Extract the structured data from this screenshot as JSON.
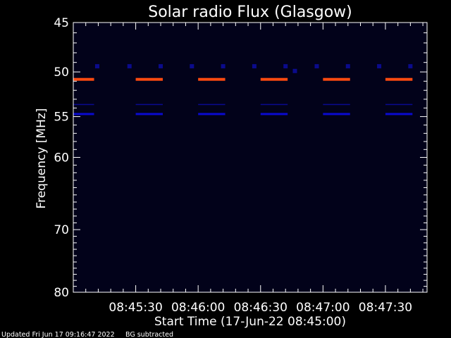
{
  "chart_data": {
    "type": "heatmap",
    "title": "Solar radio Flux (Glasgow)",
    "ylabel": "Frequency [MHz]",
    "xlabel": "Start Time (17-Jun-22 08:45:00)",
    "y_scale": "log",
    "ylim": [
      45,
      80
    ],
    "y_ticks": [
      45,
      50,
      55,
      60,
      70,
      80
    ],
    "y_tick_labels": [
      "45",
      "50",
      "55",
      "60",
      "70",
      "80"
    ],
    "xlim": [
      0,
      170
    ],
    "x_ticks": [
      30,
      60,
      90,
      120,
      150
    ],
    "x_tick_labels": [
      "08:45:30",
      "08:46:00",
      "08:46:30",
      "08:47:00",
      "08:47:30"
    ],
    "x_minor_step": 6,
    "colors": {
      "background": "#000000",
      "plot_background": "#02021a",
      "axis": "#ffffff",
      "strong_band": "#ff4a10",
      "mid_band": "#0a0ad0",
      "weak_band": "#0a0a90",
      "marker": "#0b0b8c"
    },
    "bands": [
      {
        "frequency": 50.8,
        "intensity": "strong",
        "segments": [
          [
            0,
            10
          ],
          [
            30,
            43
          ],
          [
            60,
            73
          ],
          [
            90,
            103
          ],
          [
            120,
            133
          ],
          [
            150,
            163
          ]
        ]
      },
      {
        "frequency": 54.7,
        "intensity": "mid",
        "segments": [
          [
            0,
            10
          ],
          [
            30,
            43
          ],
          [
            60,
            73
          ],
          [
            90,
            103
          ],
          [
            120,
            133
          ],
          [
            150,
            163
          ]
        ]
      },
      {
        "frequency": 53.6,
        "intensity": "weak",
        "segments": [
          [
            0,
            10
          ],
          [
            30,
            43
          ],
          [
            60,
            73
          ],
          [
            90,
            103
          ],
          [
            120,
            133
          ],
          [
            150,
            163
          ]
        ]
      }
    ],
    "markers": [
      {
        "x": 11.5,
        "frequency": 49.4
      },
      {
        "x": 27,
        "frequency": 49.4
      },
      {
        "x": 42,
        "frequency": 49.4
      },
      {
        "x": 57,
        "frequency": 49.4
      },
      {
        "x": 72,
        "frequency": 49.4
      },
      {
        "x": 87,
        "frequency": 49.4
      },
      {
        "x": 102,
        "frequency": 49.4
      },
      {
        "x": 106.5,
        "frequency": 49.9
      },
      {
        "x": 117,
        "frequency": 49.4
      },
      {
        "x": 132,
        "frequency": 49.4
      },
      {
        "x": 147,
        "frequency": 49.4
      },
      {
        "x": 162,
        "frequency": 49.4
      }
    ]
  },
  "footer": {
    "updated": "Updated Fri Jun 17 09:16:47 2022",
    "note": "BG subtracted"
  }
}
